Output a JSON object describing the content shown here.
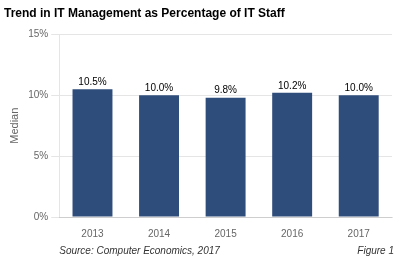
{
  "chart_data": {
    "type": "bar",
    "title": "Trend in IT Management as Percentage of IT Staff",
    "categories": [
      "2013",
      "2014",
      "2015",
      "2016",
      "2017"
    ],
    "values": [
      10.5,
      10.0,
      9.8,
      10.2,
      10.0
    ],
    "value_labels": [
      "10.5%",
      "10.0%",
      "9.8%",
      "10.2%",
      "10.0%"
    ],
    "data_labels": true,
    "color": "#2E4D7B",
    "ylabel": "Median",
    "ylim": [
      0,
      15
    ],
    "yticks": [
      {
        "value": 0,
        "label": "0%"
      },
      {
        "value": 5,
        "label": "5%"
      },
      {
        "value": 10,
        "label": "10%"
      },
      {
        "value": 15,
        "label": "15%"
      }
    ],
    "grid": true,
    "annotations": [
      "Source: Computer Economics, 2017",
      "Figure 1"
    ]
  }
}
